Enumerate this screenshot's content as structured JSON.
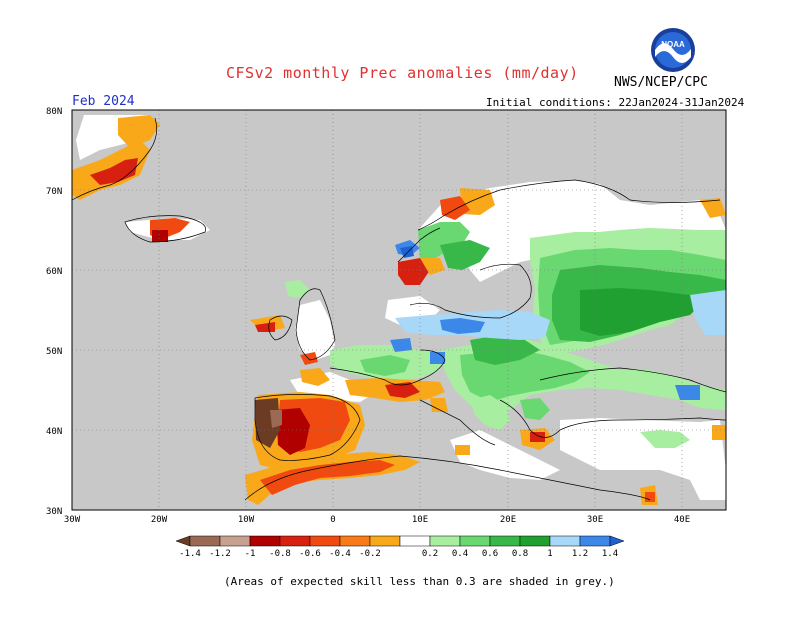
{
  "title": "CFSv2 monthly Prec anomalies (mm/day)",
  "agency": "NWS/NCEP/CPC",
  "logo_text": "NOAA",
  "month": "Feb 2024",
  "initial_conditions": "Initial conditions: 22Jan2024-31Jan2024",
  "footnote": "(Areas of expected skill less than 0.3 are shaded in grey.)",
  "lat_labels": [
    "80N",
    "70N",
    "60N",
    "50N",
    "40N",
    "30N"
  ],
  "lon_labels": [
    "30W",
    "20W",
    "10W",
    "0",
    "10E",
    "20E",
    "30E",
    "40E"
  ],
  "colorbar": {
    "ticks": [
      "-1.4",
      "-1.2",
      "-1",
      "-0.8",
      "-0.6",
      "-0.4",
      "-0.2",
      "0.2",
      "0.4",
      "0.6",
      "0.8",
      "1",
      "1.2",
      "1.4"
    ],
    "colors": [
      "#6b3b24",
      "#9a6a55",
      "#c8a090",
      "#b00000",
      "#d82010",
      "#f04a10",
      "#f87a18",
      "#f8a818",
      "#ffffff",
      "#a8eea0",
      "#6ad870",
      "#38b848",
      "#20a030",
      "#a8d8f8",
      "#3c88e8",
      "#2060d0"
    ]
  },
  "colors": {
    "grey_mask": "#c8c8c8",
    "land_outline": "#000000"
  },
  "map_extent": {
    "lon_range": [
      -30,
      45
    ],
    "lat_range": [
      30,
      80
    ]
  }
}
